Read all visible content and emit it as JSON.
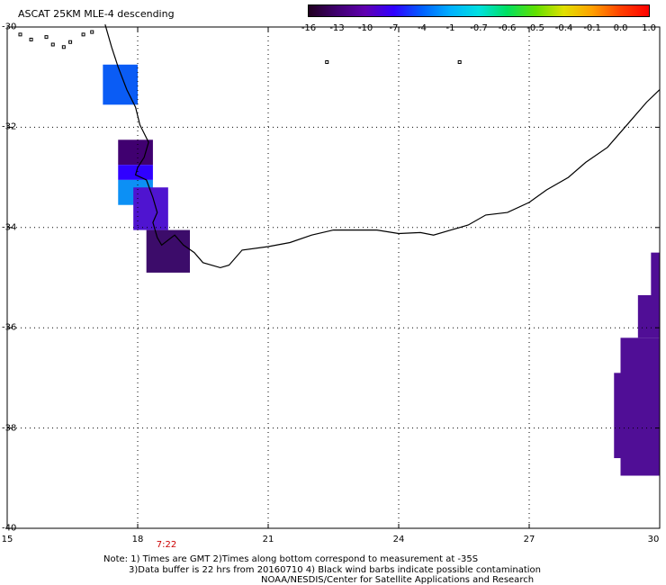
{
  "title": "ASCAT 25KM MLE-4 descending",
  "colorbar": {
    "labels": [
      "-16",
      "-13",
      "-10",
      "-7",
      "-4",
      "-1",
      "-0.7",
      "-0.6",
      "-0.5",
      "-0.4",
      "-0.1",
      "0.0",
      "1.0"
    ],
    "gradient_colors": [
      "#200020",
      "#400070",
      "#6000b0",
      "#3000ff",
      "#0060ff",
      "#00b0ff",
      "#00e0e0",
      "#00e060",
      "#60e000",
      "#e0e000",
      "#ffa000",
      "#ff4000",
      "#ff0000"
    ]
  },
  "axes": {
    "latitude_labels": [
      "-30",
      "-32",
      "-34",
      "-36",
      "-38",
      "-40"
    ],
    "latitude_values": [
      -30,
      -32,
      -34,
      -36,
      -38,
      -40
    ],
    "longitude_labels": [
      "15",
      "18",
      "21",
      "24",
      "27",
      "30"
    ],
    "longitude_values": [
      15,
      18,
      21,
      24,
      27,
      30
    ]
  },
  "time_label": "7:22",
  "notes": {
    "line1": "Note: 1) Times are GMT 2)Times along bottom correspond to measurement at -35S",
    "line2": "3)Data buffer is 22 hrs from 20160710 4) Black wind barbs indicate possible contamination",
    "line3": "NOAA/NESDIS/Center for Satellite Applications and Research"
  },
  "data_cells": [
    {
      "lon_min": 17.2,
      "lon_max": 18.0,
      "lat_min": -31.55,
      "lat_max": -30.75,
      "color": "#0a5cf5"
    },
    {
      "lon_min": 17.55,
      "lon_max": 18.35,
      "lat_min": -32.75,
      "lat_max": -32.25,
      "color": "#400070"
    },
    {
      "lon_min": 17.55,
      "lon_max": 18.35,
      "lat_min": -33.05,
      "lat_max": -32.75,
      "color": "#3000ff"
    },
    {
      "lon_min": 17.55,
      "lon_max": 18.35,
      "lat_min": -33.55,
      "lat_max": -33.05,
      "color": "#0c90f5"
    },
    {
      "lon_min": 17.9,
      "lon_max": 18.7,
      "lat_min": -34.05,
      "lat_max": -33.2,
      "color": "#4f14d0"
    },
    {
      "lon_min": 18.2,
      "lon_max": 19.2,
      "lat_min": -34.9,
      "lat_max": -34.05,
      "color": "#3c0c6a"
    },
    {
      "lon_min": 29.8,
      "lon_max": 30.0,
      "lat_min": -35.35,
      "lat_max": -34.5,
      "color": "#500e96"
    },
    {
      "lon_min": 29.5,
      "lon_max": 30.0,
      "lat_min": -36.2,
      "lat_max": -35.35,
      "color": "#500e96"
    },
    {
      "lon_min": 29.1,
      "lon_max": 30.0,
      "lat_min": -38.95,
      "lat_max": -36.2,
      "color": "#500e96"
    },
    {
      "lon_min": 28.95,
      "lon_max": 29.1,
      "lat_min": -38.6,
      "lat_max": -36.9,
      "color": "#500e96"
    }
  ],
  "coastline": [
    [
      17.25,
      -29.95
    ],
    [
      17.4,
      -30.4
    ],
    [
      17.55,
      -30.8
    ],
    [
      17.75,
      -31.25
    ],
    [
      17.95,
      -31.6
    ],
    [
      18.05,
      -31.95
    ],
    [
      18.25,
      -32.3
    ],
    [
      18.15,
      -32.6
    ],
    [
      18.0,
      -32.8
    ],
    [
      17.95,
      -32.95
    ],
    [
      18.2,
      -33.05
    ],
    [
      18.35,
      -33.4
    ],
    [
      18.45,
      -33.7
    ],
    [
      18.35,
      -33.9
    ],
    [
      18.45,
      -34.2
    ],
    [
      18.55,
      -34.35
    ],
    [
      18.85,
      -34.15
    ],
    [
      19.05,
      -34.35
    ],
    [
      19.3,
      -34.5
    ],
    [
      19.5,
      -34.7
    ],
    [
      19.9,
      -34.8
    ],
    [
      20.1,
      -34.75
    ],
    [
      20.4,
      -34.45
    ],
    [
      21.0,
      -34.38
    ],
    [
      21.5,
      -34.3
    ],
    [
      22.0,
      -34.15
    ],
    [
      22.5,
      -34.05
    ],
    [
      23.0,
      -34.05
    ],
    [
      23.5,
      -34.05
    ],
    [
      24.0,
      -34.12
    ],
    [
      24.5,
      -34.1
    ],
    [
      24.8,
      -34.15
    ],
    [
      25.2,
      -34.05
    ],
    [
      25.6,
      -33.95
    ],
    [
      26.0,
      -33.75
    ],
    [
      26.5,
      -33.7
    ],
    [
      27.0,
      -33.5
    ],
    [
      27.4,
      -33.25
    ],
    [
      27.9,
      -33.0
    ],
    [
      28.3,
      -32.7
    ],
    [
      28.8,
      -32.4
    ],
    [
      29.3,
      -31.9
    ],
    [
      29.7,
      -31.5
    ],
    [
      30.0,
      -31.25
    ]
  ],
  "islands": [
    [
      15.3,
      -30.15
    ],
    [
      15.55,
      -30.25
    ],
    [
      15.9,
      -30.2
    ],
    [
      16.05,
      -30.35
    ],
    [
      16.3,
      -30.4
    ],
    [
      16.45,
      -30.3
    ],
    [
      16.75,
      -30.15
    ],
    [
      16.95,
      -30.1
    ],
    [
      22.35,
      -30.7
    ],
    [
      25.4,
      -30.7
    ]
  ]
}
